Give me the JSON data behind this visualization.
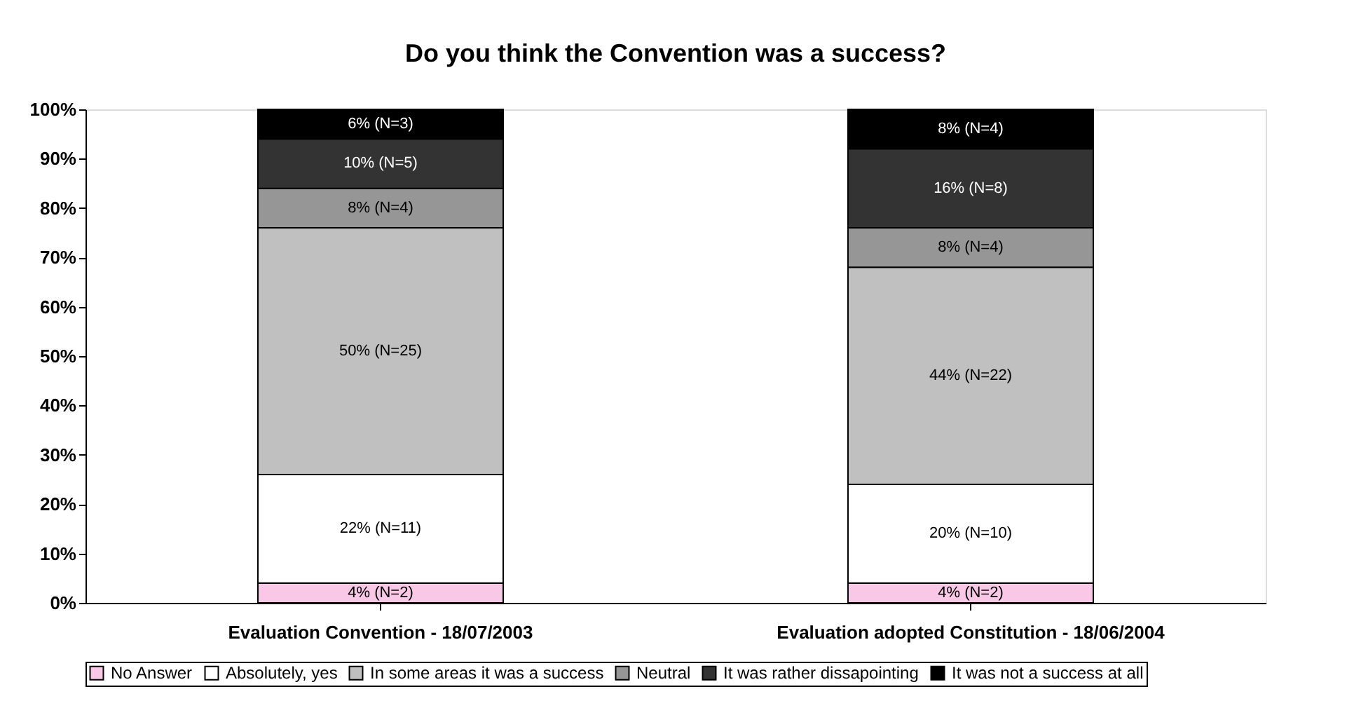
{
  "chart_data": {
    "type": "bar",
    "stacked": true,
    "title": "Do you think the Convention was a success?",
    "categories": [
      "Evaluation Convention - 18/07/2003",
      "Evaluation adopted Constitution - 18/06/2004"
    ],
    "series": [
      {
        "name": "No Answer",
        "color": "#f8c8e6",
        "values": [
          4,
          4
        ],
        "value_labels": [
          "4% (N=2)",
          "4% (N=2)"
        ]
      },
      {
        "name": "Absolutely, yes",
        "color": "#ffffff",
        "values": [
          22,
          20
        ],
        "value_labels": [
          "22% (N=11)",
          "20% (N=10)"
        ]
      },
      {
        "name": "In some areas it was a success",
        "color": "#c0c0c0",
        "values": [
          50,
          44
        ],
        "value_labels": [
          "50% (N=25)",
          "44% (N=22)"
        ]
      },
      {
        "name": "Neutral",
        "color": "#969696",
        "values": [
          8,
          8
        ],
        "value_labels": [
          "8% (N=4)",
          "8% (N=4)"
        ]
      },
      {
        "name": "It was rather dissapointing",
        "color": "#333333",
        "values": [
          10,
          16
        ],
        "value_labels": [
          "10% (N=5)",
          "16% (N=8)"
        ]
      },
      {
        "name": "It was not a success at all",
        "color": "#000000",
        "values": [
          6,
          8
        ],
        "value_labels": [
          "6% (N=3)",
          "8% (N=4)"
        ]
      }
    ],
    "ylim": [
      0,
      100
    ],
    "yticks": [
      {
        "value": 0,
        "label": "0%"
      },
      {
        "value": 10,
        "label": "10%"
      },
      {
        "value": 20,
        "label": "20%"
      },
      {
        "value": 30,
        "label": "30%"
      },
      {
        "value": 40,
        "label": "40%"
      },
      {
        "value": 50,
        "label": "50%"
      },
      {
        "value": 60,
        "label": "60%"
      },
      {
        "value": 70,
        "label": "70%"
      },
      {
        "value": 80,
        "label": "80%"
      },
      {
        "value": 90,
        "label": "90%"
      },
      {
        "value": 100,
        "label": "100%"
      }
    ],
    "grid": false,
    "legend": "bottom"
  }
}
